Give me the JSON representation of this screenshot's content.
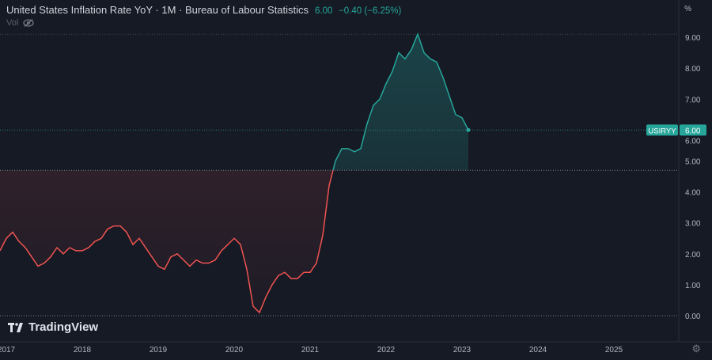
{
  "header": {
    "title": "United States Inflation Rate YoY · 1M · Bureau of Labour Statistics",
    "last": "6.00",
    "change": "−0.40 (−6.25%)",
    "vol_label": "Vol",
    "unit": "%"
  },
  "branding": {
    "logo_text": "TradingView"
  },
  "colors": {
    "up": "#26a69a",
    "down": "#ef5350",
    "bg": "#161a25",
    "text": "#b2b5be"
  },
  "chart_data": {
    "type": "line",
    "title": "United States Inflation Rate YoY",
    "symbol": "USIRYY",
    "last_value_label": "6.00",
    "baseline": 4.7,
    "start": "2016-12",
    "frequency": "monthly",
    "values": [
      2.1,
      2.5,
      2.7,
      2.4,
      2.2,
      1.9,
      1.6,
      1.7,
      1.9,
      2.2,
      2.0,
      2.2,
      2.1,
      2.1,
      2.2,
      2.4,
      2.5,
      2.8,
      2.9,
      2.9,
      2.7,
      2.3,
      2.5,
      2.2,
      1.9,
      1.6,
      1.5,
      1.9,
      2.0,
      1.8,
      1.6,
      1.8,
      1.7,
      1.7,
      1.8,
      2.1,
      2.3,
      2.5,
      2.3,
      1.5,
      0.3,
      0.1,
      0.6,
      1.0,
      1.3,
      1.4,
      1.2,
      1.2,
      1.4,
      1.4,
      1.7,
      2.6,
      4.2,
      5.0,
      5.4,
      5.4,
      5.3,
      5.4,
      6.2,
      6.8,
      7.0,
      7.5,
      7.9,
      8.5,
      8.3,
      8.6,
      9.1,
      8.5,
      8.3,
      8.2,
      7.7,
      7.1,
      6.5,
      6.4,
      6.0
    ],
    "ylim": [
      0,
      9.5
    ],
    "y_ticks": [
      "0.00",
      "1.00",
      "2.00",
      "3.00",
      "4.00",
      "5.00",
      "6.00",
      "7.00",
      "8.00",
      "9.00"
    ],
    "x_ticks": [
      "2017",
      "2018",
      "2019",
      "2020",
      "2021",
      "2022",
      "2023",
      "2024",
      "2025"
    ]
  }
}
